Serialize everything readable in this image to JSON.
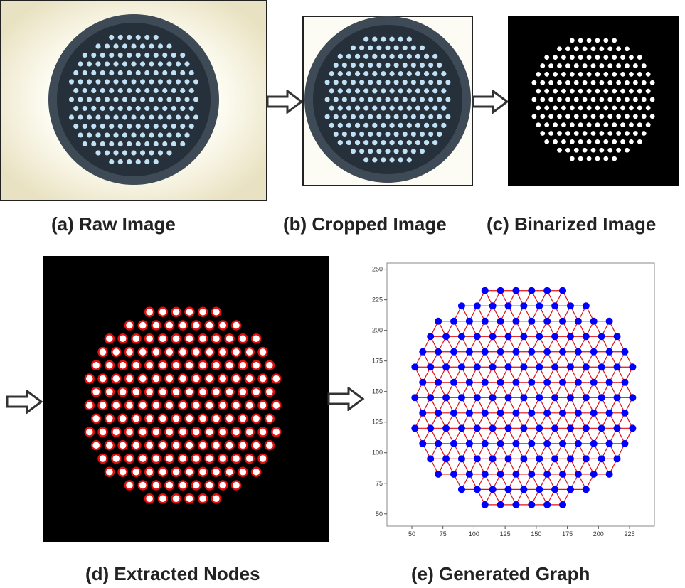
{
  "captions": {
    "raw": "(a) Raw Image",
    "cropped": "(b) Cropped Image",
    "binarized": "(c) Binarized Image",
    "nodes": "(d) Extracted Nodes",
    "graph": "(e) Generated Graph"
  },
  "colors": {
    "raw_background": "#f5f0da",
    "dish": "#4a5560",
    "dot_raw": "#bfe0f5",
    "node_outline": "#e01010",
    "graph_node": "#0000ff",
    "graph_edge": "#e01010"
  },
  "chart_data": {
    "type": "scatter",
    "x_ticks": [
      50,
      75,
      100,
      125,
      150,
      175,
      200,
      225
    ],
    "y_ticks": [
      50,
      75,
      100,
      125,
      150,
      175,
      200,
      225,
      250
    ],
    "xlim": [
      30,
      245
    ],
    "ylim": [
      40,
      255
    ],
    "center": [
      140,
      145
    ],
    "radius": 100
  }
}
